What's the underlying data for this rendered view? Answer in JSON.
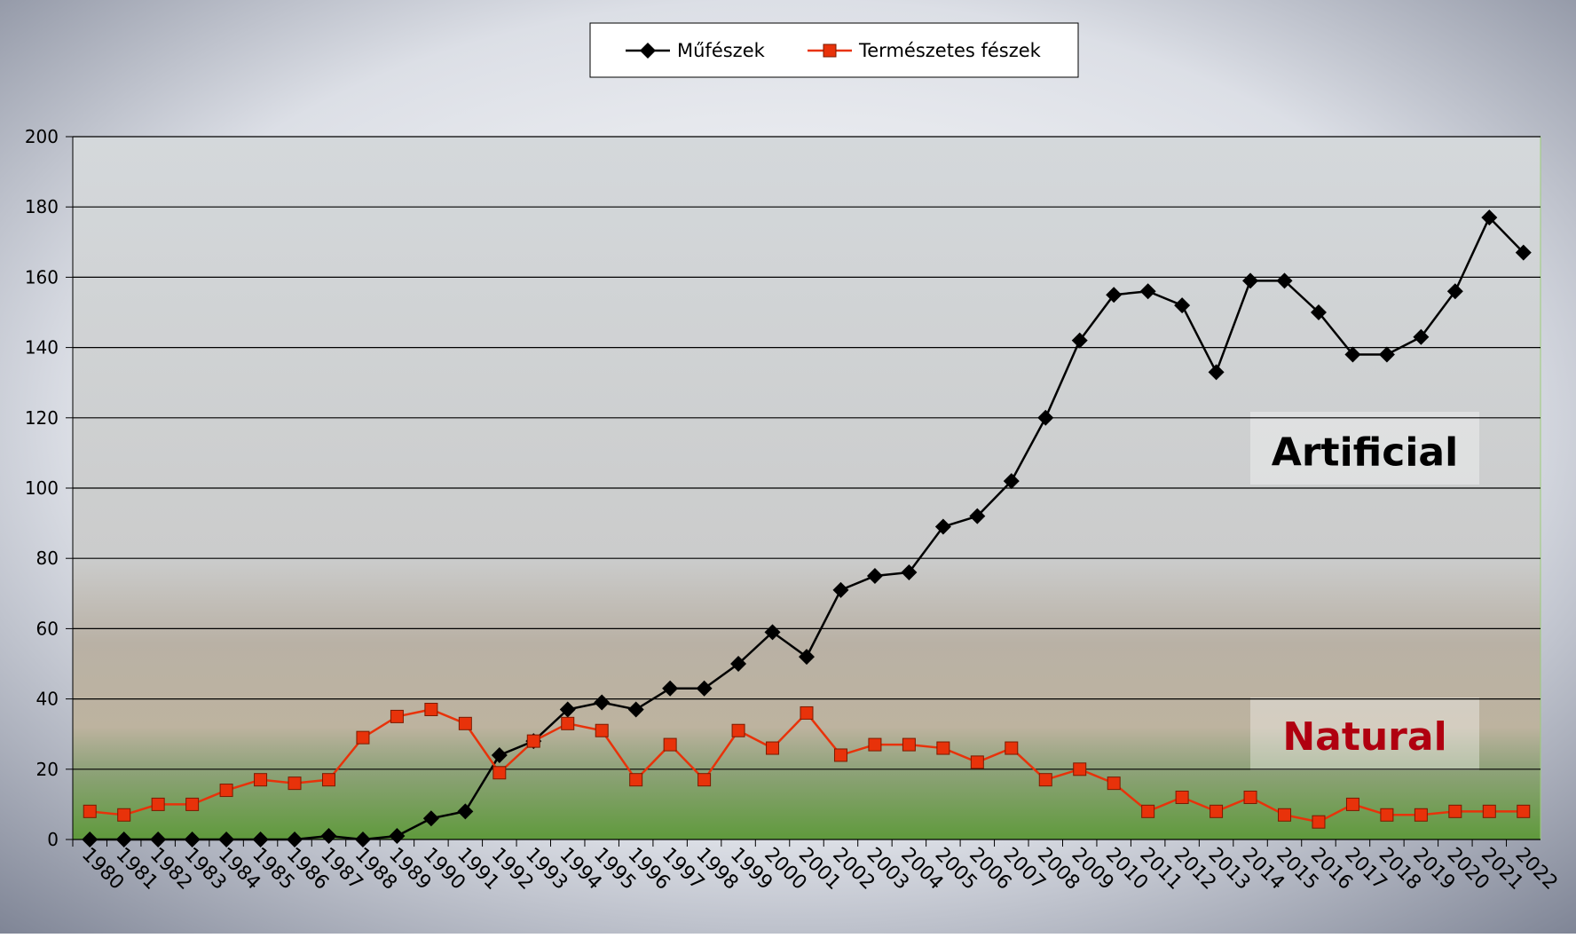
{
  "chart_data": {
    "type": "line",
    "categories": [
      "1980",
      "1981",
      "1982",
      "1983",
      "1984",
      "1985",
      "1986",
      "1987",
      "1988",
      "1989",
      "1990",
      "1991",
      "1992",
      "1993",
      "1994",
      "1995",
      "1996",
      "1997",
      "1998",
      "1999",
      "2000",
      "2001",
      "2002",
      "2003",
      "2004",
      "2005",
      "2006",
      "2007",
      "2008",
      "2009",
      "2010",
      "2011",
      "2012",
      "2013",
      "2014",
      "2015",
      "2016",
      "2017",
      "2018",
      "2019",
      "2020",
      "2021",
      "2022"
    ],
    "series": [
      {
        "name": "Műfészek",
        "color": "#000000",
        "marker": "diamond",
        "values": [
          0,
          0,
          0,
          0,
          0,
          0,
          0,
          1,
          0,
          1,
          6,
          8,
          24,
          28,
          37,
          39,
          37,
          43,
          43,
          50,
          59,
          52,
          71,
          75,
          76,
          89,
          92,
          102,
          120,
          142,
          155,
          156,
          152,
          133,
          159,
          159,
          150,
          138,
          138,
          143,
          156,
          177,
          167
        ]
      },
      {
        "name": "Természetes fészek",
        "color": "#e8320a",
        "marker": "square",
        "values": [
          8,
          7,
          10,
          10,
          14,
          17,
          16,
          17,
          29,
          35,
          37,
          33,
          19,
          28,
          33,
          31,
          17,
          27,
          17,
          31,
          26,
          36,
          24,
          27,
          27,
          26,
          22,
          26,
          17,
          20,
          16,
          8,
          12,
          8,
          12,
          7,
          5,
          10,
          7,
          7,
          8,
          8,
          8
        ]
      }
    ],
    "ylim": [
      0,
      200
    ],
    "yticks": [
      0,
      20,
      40,
      60,
      80,
      100,
      120,
      140,
      160,
      180,
      200
    ],
    "grid": true,
    "legend": "top",
    "annotations": [
      {
        "text": "Artificial",
        "color": "#000000",
        "y": 110
      },
      {
        "text": "Natural",
        "color": "#b00010",
        "y": 29
      }
    ]
  }
}
